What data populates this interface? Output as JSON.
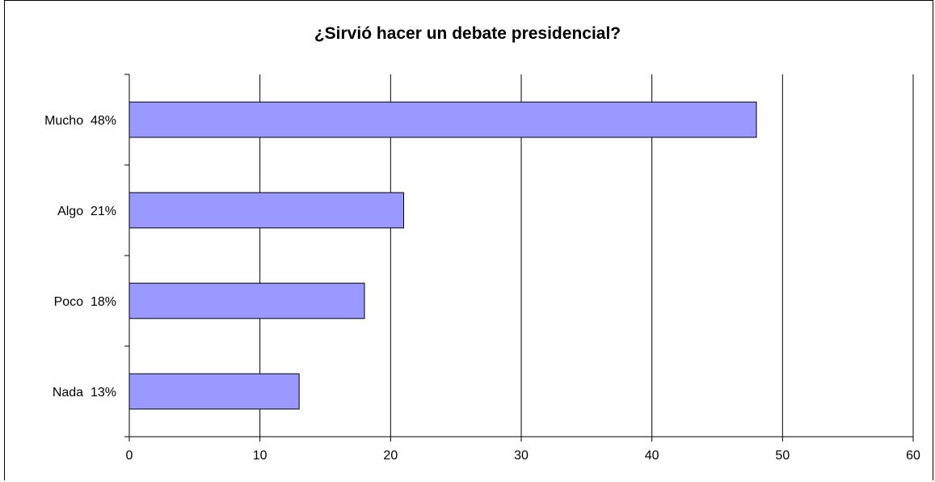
{
  "chart_data": {
    "type": "bar",
    "orientation": "horizontal",
    "title": "¿Sirvió hacer un debate presidencial?",
    "categories": [
      "Mucho  48%",
      "Algo  21%",
      "Poco  18%",
      "Nada  13%"
    ],
    "values": [
      48,
      21,
      18,
      13
    ],
    "xlim": [
      0,
      60
    ],
    "xticks": [
      0,
      10,
      20,
      30,
      40,
      50,
      60
    ],
    "xlabel": "",
    "ylabel": "",
    "grid": "vertical",
    "bar_color": "#9999ff",
    "bar_edge_color": "#000000"
  }
}
